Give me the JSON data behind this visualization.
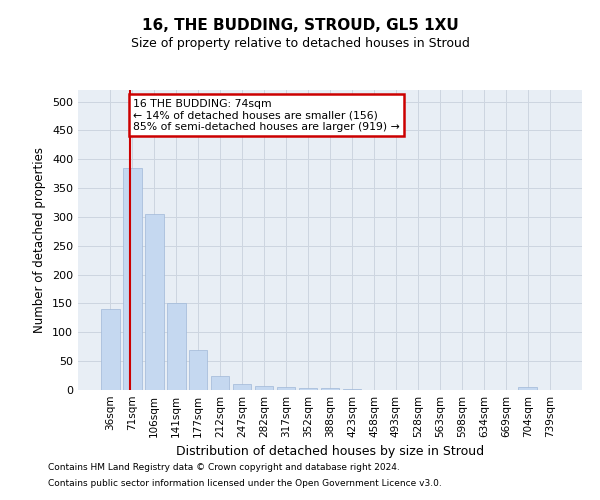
{
  "title1": "16, THE BUDDING, STROUD, GL5 1XU",
  "title2": "Size of property relative to detached houses in Stroud",
  "xlabel": "Distribution of detached houses by size in Stroud",
  "ylabel": "Number of detached properties",
  "categories": [
    "36sqm",
    "71sqm",
    "106sqm",
    "141sqm",
    "177sqm",
    "212sqm",
    "247sqm",
    "282sqm",
    "317sqm",
    "352sqm",
    "388sqm",
    "423sqm",
    "458sqm",
    "493sqm",
    "528sqm",
    "563sqm",
    "598sqm",
    "634sqm",
    "669sqm",
    "704sqm",
    "739sqm"
  ],
  "values": [
    140,
    385,
    305,
    150,
    70,
    25,
    10,
    7,
    5,
    3,
    3,
    2,
    0,
    0,
    0,
    0,
    0,
    0,
    0,
    5,
    0
  ],
  "bar_color": "#c5d8f0",
  "bar_edge_color": "#a0b8d8",
  "annotation_text": "16 THE BUDDING: 74sqm\n← 14% of detached houses are smaller (156)\n85% of semi-detached houses are larger (919) →",
  "annotation_box_color": "#ffffff",
  "annotation_box_edge_color": "#cc0000",
  "property_line_color": "#cc0000",
  "ylim": [
    0,
    520
  ],
  "yticks": [
    0,
    50,
    100,
    150,
    200,
    250,
    300,
    350,
    400,
    450,
    500
  ],
  "grid_color": "#cdd5e0",
  "background_color": "#e8eef5",
  "footnote1": "Contains HM Land Registry data © Crown copyright and database right 2024.",
  "footnote2": "Contains public sector information licensed under the Open Government Licence v3.0."
}
